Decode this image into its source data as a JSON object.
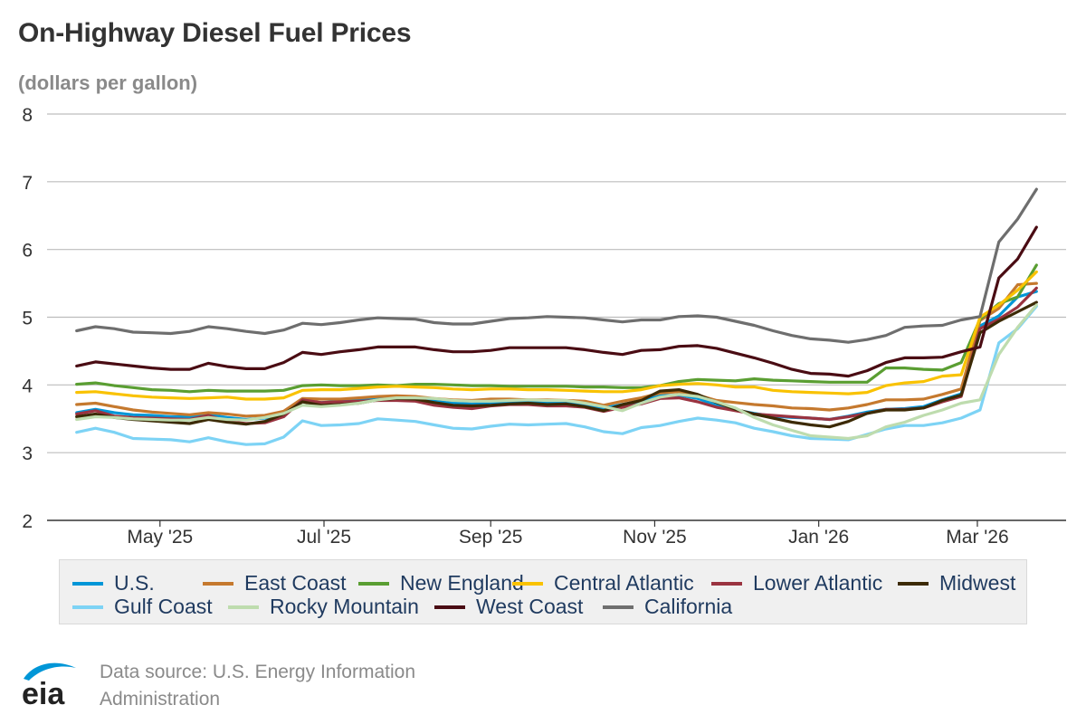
{
  "header": {
    "title": "On-Highway Diesel Fuel Prices",
    "subtitle": "(dollars per gallon)"
  },
  "footer": {
    "source_line1": "Data source: U.S. Energy Information",
    "source_line2": "Administration",
    "logo_text": "eia"
  },
  "colors": {
    "gridline": "#bdbdbd",
    "axis": "#333333",
    "legend_bg": "#f0f0f0",
    "logo_blue": "#0096d7"
  },
  "chart_data": {
    "type": "line",
    "title": "On-Highway Diesel Fuel Prices",
    "ylabel": "(dollars per gallon)",
    "xlabel": "",
    "ylim": [
      2,
      8
    ],
    "yticks": [
      "2",
      "3",
      "4",
      "5",
      "6",
      "7",
      "8"
    ],
    "xtick_labels": [
      "May '25",
      "Jul '25",
      "Sep '25",
      "Nov '25",
      "Jan '26",
      "Mar '26"
    ],
    "x": [
      "2025-03-31",
      "2025-04-07",
      "2025-04-14",
      "2025-04-21",
      "2025-04-28",
      "2025-05-05",
      "2025-05-12",
      "2025-05-19",
      "2025-05-26",
      "2025-06-02",
      "2025-06-09",
      "2025-06-16",
      "2025-06-23",
      "2025-06-30",
      "2025-07-07",
      "2025-07-14",
      "2025-07-21",
      "2025-07-28",
      "2025-08-04",
      "2025-08-11",
      "2025-08-18",
      "2025-08-25",
      "2025-09-01",
      "2025-09-08",
      "2025-09-15",
      "2025-09-22",
      "2025-09-29",
      "2025-10-06",
      "2025-10-13",
      "2025-10-20",
      "2025-10-27",
      "2025-11-03",
      "2025-11-10",
      "2025-11-17",
      "2025-11-24",
      "2025-12-01",
      "2025-12-08",
      "2025-12-15",
      "2025-12-22",
      "2025-12-29",
      "2026-01-05",
      "2026-01-12",
      "2026-01-19",
      "2026-01-26",
      "2026-02-02",
      "2026-02-09",
      "2026-02-16",
      "2026-02-23",
      "2026-03-02",
      "2026-03-09",
      "2026-03-16",
      "2026-03-23"
    ],
    "grid": true,
    "legend_position": "bottom",
    "series": [
      {
        "name": "U.S.",
        "color": "#0096d7",
        "values": [
          3.59,
          3.64,
          3.59,
          3.56,
          3.55,
          3.53,
          3.53,
          3.56,
          3.52,
          3.49,
          3.51,
          3.57,
          3.76,
          3.74,
          3.76,
          3.78,
          3.81,
          3.82,
          3.81,
          3.76,
          3.73,
          3.72,
          3.74,
          3.75,
          3.75,
          3.74,
          3.73,
          3.71,
          3.66,
          3.71,
          3.76,
          3.84,
          3.85,
          3.8,
          3.7,
          3.63,
          3.58,
          3.54,
          3.52,
          3.51,
          3.49,
          3.54,
          3.6,
          3.64,
          3.65,
          3.68,
          3.78,
          3.87,
          4.87,
          5.02,
          5.3,
          5.38
        ]
      },
      {
        "name": "East Coast",
        "color": "#c5792e",
        "values": [
          3.71,
          3.73,
          3.68,
          3.63,
          3.6,
          3.58,
          3.56,
          3.59,
          3.57,
          3.54,
          3.55,
          3.61,
          3.8,
          3.79,
          3.79,
          3.81,
          3.83,
          3.84,
          3.83,
          3.8,
          3.78,
          3.77,
          3.79,
          3.79,
          3.78,
          3.78,
          3.77,
          3.76,
          3.7,
          3.76,
          3.81,
          3.88,
          3.9,
          3.85,
          3.77,
          3.74,
          3.71,
          3.69,
          3.66,
          3.65,
          3.63,
          3.66,
          3.71,
          3.78,
          3.78,
          3.79,
          3.86,
          3.94,
          4.95,
          5.13,
          5.48,
          5.5
        ]
      },
      {
        "name": "New England",
        "color": "#5a9e32",
        "values": [
          4.01,
          4.03,
          3.99,
          3.96,
          3.93,
          3.92,
          3.9,
          3.92,
          3.91,
          3.91,
          3.91,
          3.92,
          3.99,
          4.0,
          3.99,
          3.99,
          4.0,
          3.99,
          4.01,
          4.01,
          4.0,
          3.99,
          3.99,
          3.98,
          3.98,
          3.98,
          3.98,
          3.97,
          3.97,
          3.96,
          3.96,
          3.99,
          4.05,
          4.08,
          4.07,
          4.06,
          4.09,
          4.07,
          4.06,
          4.05,
          4.04,
          4.04,
          4.04,
          4.25,
          4.25,
          4.23,
          4.22,
          4.33,
          4.97,
          5.2,
          5.3,
          5.77
        ]
      },
      {
        "name": "Central Atlantic",
        "color": "#f9c200",
        "values": [
          3.89,
          3.9,
          3.87,
          3.84,
          3.82,
          3.81,
          3.8,
          3.81,
          3.82,
          3.79,
          3.79,
          3.81,
          3.92,
          3.93,
          3.93,
          3.95,
          3.97,
          3.98,
          3.97,
          3.96,
          3.94,
          3.93,
          3.94,
          3.94,
          3.93,
          3.93,
          3.92,
          3.91,
          3.9,
          3.9,
          3.93,
          3.99,
          4.01,
          4.02,
          4.0,
          3.97,
          3.97,
          3.92,
          3.9,
          3.89,
          3.88,
          3.87,
          3.89,
          3.99,
          4.03,
          4.05,
          4.13,
          4.15,
          5.0,
          5.18,
          5.4,
          5.67
        ]
      },
      {
        "name": "Lower Atlantic",
        "color": "#9a3340",
        "values": [
          3.57,
          3.62,
          3.54,
          3.52,
          3.51,
          3.5,
          3.49,
          3.55,
          3.46,
          3.43,
          3.44,
          3.53,
          3.78,
          3.74,
          3.75,
          3.76,
          3.77,
          3.77,
          3.76,
          3.7,
          3.67,
          3.65,
          3.69,
          3.71,
          3.71,
          3.69,
          3.69,
          3.67,
          3.61,
          3.67,
          3.72,
          3.8,
          3.81,
          3.75,
          3.67,
          3.62,
          3.57,
          3.55,
          3.53,
          3.51,
          3.49,
          3.53,
          3.58,
          3.64,
          3.64,
          3.66,
          3.75,
          3.83,
          4.83,
          4.97,
          5.15,
          5.43
        ]
      },
      {
        "name": "Midwest",
        "color": "#3c2a05",
        "values": [
          3.53,
          3.57,
          3.52,
          3.49,
          3.47,
          3.45,
          3.43,
          3.49,
          3.45,
          3.42,
          3.46,
          3.57,
          3.75,
          3.7,
          3.71,
          3.73,
          3.78,
          3.8,
          3.79,
          3.74,
          3.7,
          3.69,
          3.7,
          3.72,
          3.73,
          3.71,
          3.72,
          3.68,
          3.62,
          3.71,
          3.77,
          3.91,
          3.93,
          3.86,
          3.74,
          3.64,
          3.57,
          3.51,
          3.45,
          3.41,
          3.38,
          3.46,
          3.58,
          3.63,
          3.63,
          3.66,
          3.77,
          3.85,
          4.77,
          4.94,
          5.08,
          5.22
        ]
      },
      {
        "name": "Gulf Coast",
        "color": "#7dd3f5",
        "values": [
          3.3,
          3.36,
          3.3,
          3.21,
          3.2,
          3.19,
          3.16,
          3.22,
          3.16,
          3.12,
          3.13,
          3.23,
          3.47,
          3.4,
          3.41,
          3.43,
          3.5,
          3.48,
          3.46,
          3.41,
          3.36,
          3.35,
          3.39,
          3.42,
          3.41,
          3.42,
          3.43,
          3.38,
          3.31,
          3.28,
          3.37,
          3.4,
          3.46,
          3.51,
          3.48,
          3.44,
          3.36,
          3.31,
          3.25,
          3.21,
          3.2,
          3.19,
          3.27,
          3.35,
          3.4,
          3.4,
          3.44,
          3.51,
          3.63,
          4.62,
          4.83,
          5.16
        ]
      },
      {
        "name": "Rocky Mountain",
        "color": "#bedcae",
        "values": [
          3.49,
          3.53,
          3.52,
          3.5,
          3.49,
          3.48,
          3.48,
          3.52,
          3.49,
          3.48,
          3.52,
          3.58,
          3.7,
          3.68,
          3.7,
          3.73,
          3.78,
          3.81,
          3.81,
          3.8,
          3.77,
          3.76,
          3.76,
          3.77,
          3.78,
          3.77,
          3.77,
          3.73,
          3.68,
          3.62,
          3.73,
          3.82,
          3.86,
          3.83,
          3.75,
          3.66,
          3.52,
          3.41,
          3.33,
          3.25,
          3.23,
          3.21,
          3.25,
          3.38,
          3.45,
          3.55,
          3.63,
          3.73,
          3.78,
          4.45,
          4.85,
          5.18
        ]
      },
      {
        "name": "West Coast",
        "color": "#4a0c13",
        "values": [
          4.28,
          4.34,
          4.31,
          4.28,
          4.25,
          4.23,
          4.23,
          4.32,
          4.27,
          4.24,
          4.24,
          4.33,
          4.48,
          4.45,
          4.49,
          4.52,
          4.56,
          4.56,
          4.56,
          4.52,
          4.49,
          4.49,
          4.51,
          4.55,
          4.55,
          4.55,
          4.55,
          4.52,
          4.48,
          4.45,
          4.51,
          4.52,
          4.57,
          4.58,
          4.54,
          4.47,
          4.4,
          4.32,
          4.23,
          4.17,
          4.16,
          4.13,
          4.21,
          4.33,
          4.4,
          4.4,
          4.41,
          4.49,
          4.56,
          5.58,
          5.86,
          6.33
        ]
      },
      {
        "name": "California",
        "color": "#6e6e6e",
        "values": [
          4.8,
          4.86,
          4.83,
          4.78,
          4.77,
          4.76,
          4.79,
          4.86,
          4.83,
          4.79,
          4.76,
          4.81,
          4.91,
          4.89,
          4.92,
          4.96,
          4.99,
          4.98,
          4.97,
          4.92,
          4.9,
          4.9,
          4.94,
          4.98,
          4.99,
          5.01,
          5.0,
          4.99,
          4.96,
          4.93,
          4.96,
          4.96,
          5.01,
          5.02,
          5.0,
          4.94,
          4.88,
          4.8,
          4.73,
          4.68,
          4.66,
          4.63,
          4.67,
          4.73,
          4.85,
          4.87,
          4.88,
          4.96,
          5.01,
          6.11,
          6.45,
          6.89
        ]
      }
    ]
  }
}
